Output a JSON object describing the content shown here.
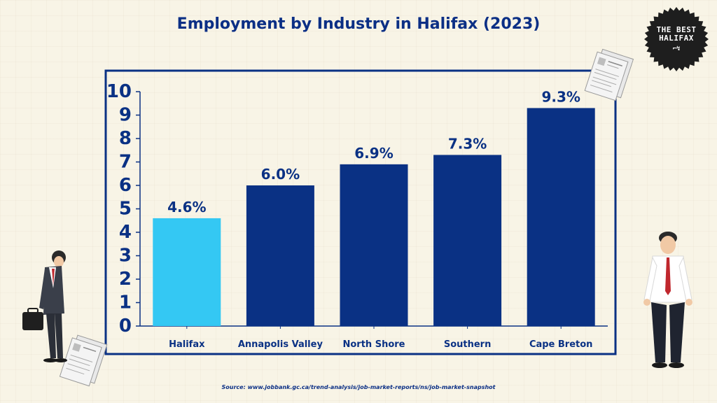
{
  "page": {
    "title": "Employment by Industry in Halifax (2023)",
    "source": "Source: www.jobbank.gc.ca/trend-analysis/job-market-reports/ns/job-market-snapshot"
  },
  "logo": {
    "line1": "THE BEST",
    "line2": "HALIFAX"
  },
  "colors": {
    "primary": "#0a3184",
    "highlight": "#34c8f3",
    "frame": "#0a3184",
    "background": "#f8f4e6"
  },
  "chart_data": {
    "type": "bar",
    "title": "Employment by Industry in Halifax (2023)",
    "xlabel": "",
    "ylabel": "",
    "ylim": [
      0,
      10
    ],
    "yticks": [
      0,
      1,
      2,
      3,
      4,
      5,
      6,
      7,
      8,
      9,
      10
    ],
    "grid": false,
    "legend": "none",
    "categories": [
      "Halifax",
      "Annapolis Valley",
      "North Shore",
      "Southern",
      "Cape Breton"
    ],
    "values": [
      4.6,
      6.0,
      6.9,
      7.3,
      9.3
    ],
    "data_labels": [
      "4.6%",
      "6.0%",
      "6.9%",
      "7.3%",
      "9.3%"
    ],
    "highlighted_category": "Halifax"
  }
}
